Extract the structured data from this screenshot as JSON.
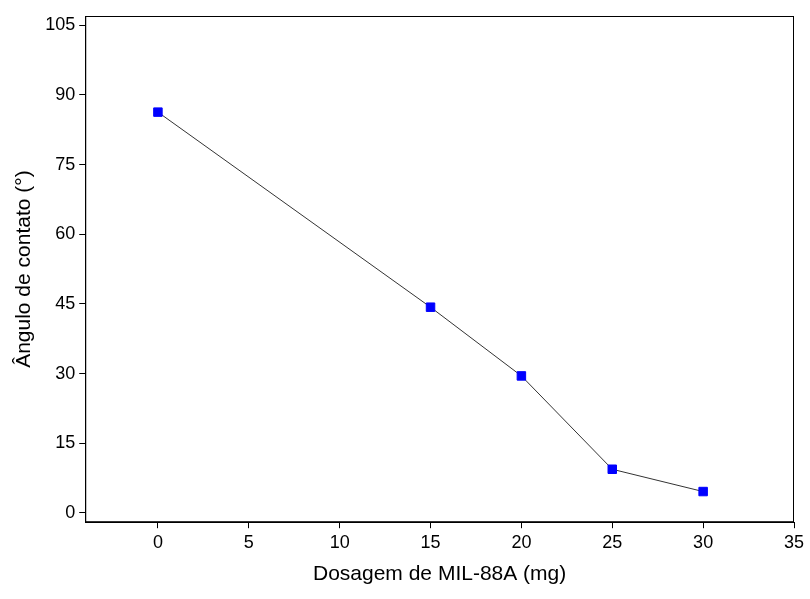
{
  "chart_data": {
    "type": "line",
    "x_label": "Dosagem de MIL-88A (mg)",
    "y_label": "Ângulo de contato (°)",
    "x": [
      0,
      15,
      20,
      25,
      30
    ],
    "values": [
      86.3,
      44.3,
      29.5,
      9.4,
      4.6
    ],
    "color": "#0000ff",
    "marker": "square",
    "line_style": "solid",
    "xlim": [
      -4,
      35
    ],
    "xticks": [
      0,
      5,
      10,
      15,
      20,
      25,
      30,
      35
    ],
    "ylim": [
      -2,
      107
    ],
    "yticks": [
      0,
      15,
      30,
      45,
      60,
      75,
      90,
      105
    ],
    "grid": false
  }
}
